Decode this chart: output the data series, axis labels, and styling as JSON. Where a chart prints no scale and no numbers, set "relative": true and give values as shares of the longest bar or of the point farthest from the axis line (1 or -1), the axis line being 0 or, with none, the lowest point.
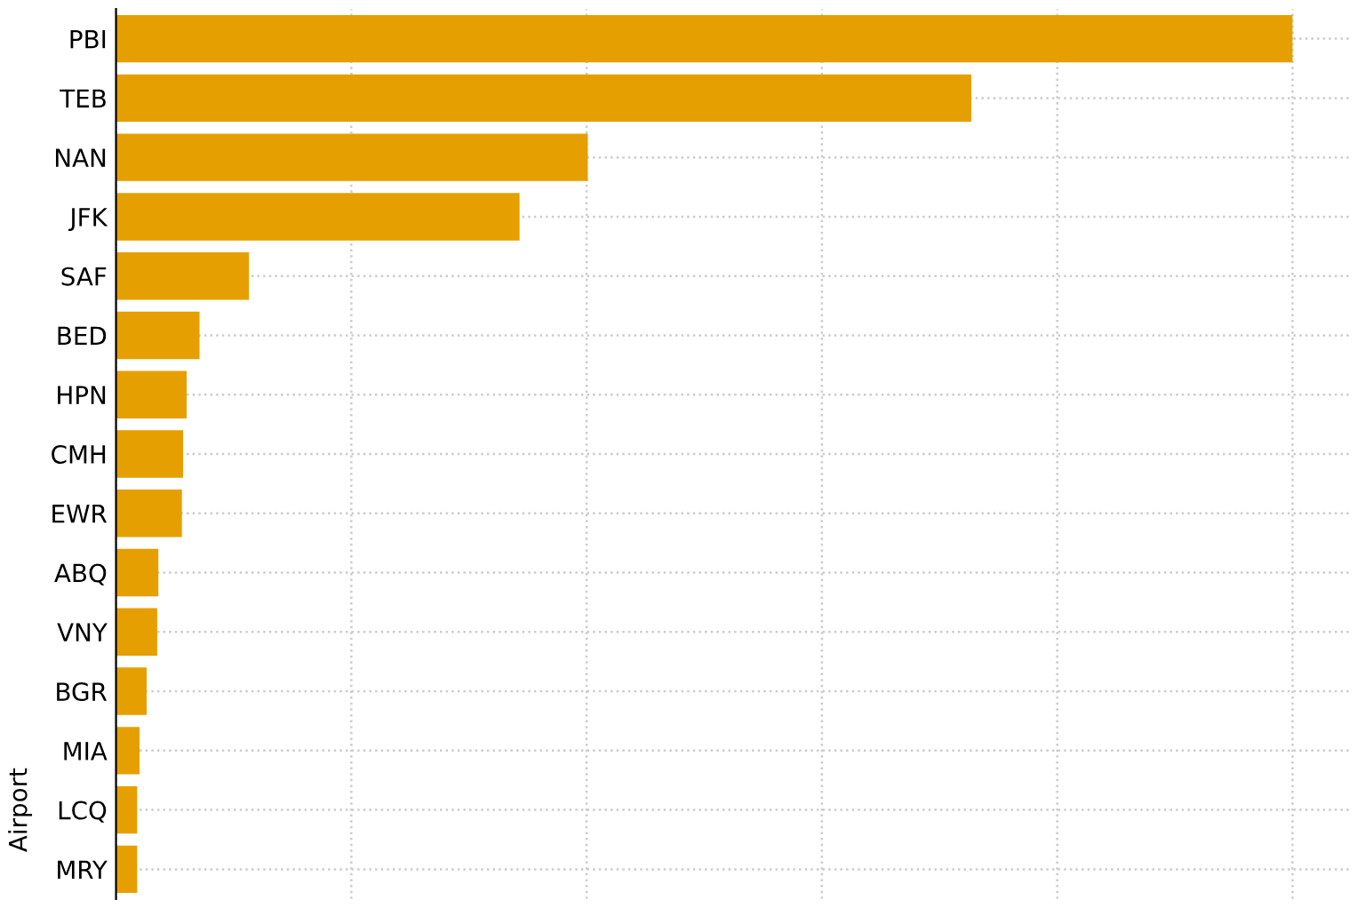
{
  "chart_data": {
    "type": "bar",
    "orientation": "horizontal",
    "relative": true,
    "ylabel": "Airport",
    "categories": [
      "PBI",
      "TEB",
      "NAN",
      "JFK",
      "SAF",
      "BED",
      "HPN",
      "CMH",
      "EWR",
      "ABQ",
      "VNY",
      "BGR",
      "MIA",
      "LCQ",
      "MRY"
    ],
    "values": [
      1,
      0.727,
      0.401,
      0.343,
      0.113,
      0.071,
      0.06,
      0.057,
      0.056,
      0.036,
      0.035,
      0.026,
      0.02,
      0.018,
      0.018
    ],
    "color": "#e69f00",
    "grid": true
  }
}
